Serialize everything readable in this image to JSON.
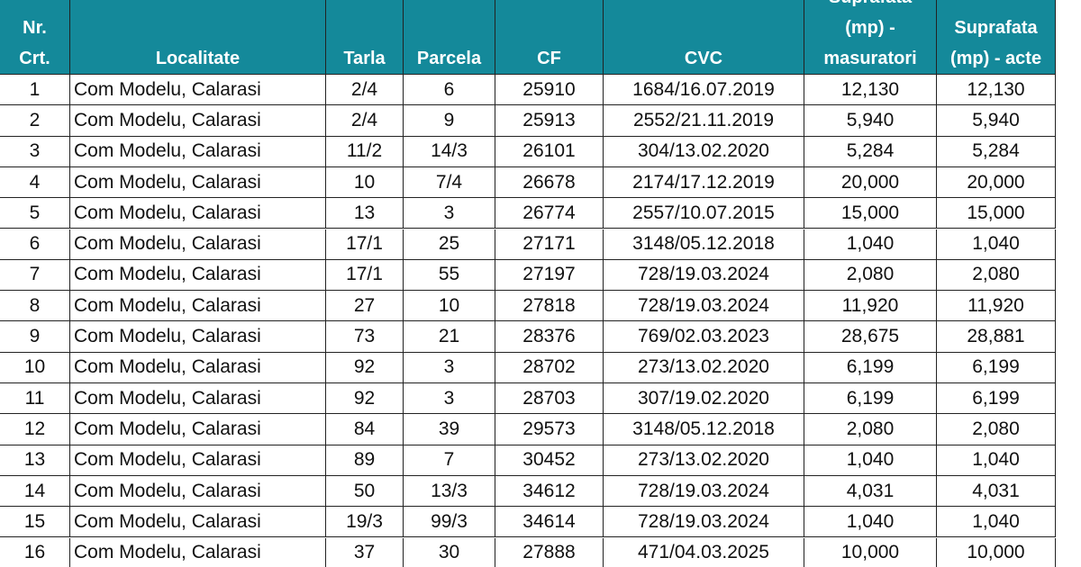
{
  "table": {
    "headers": [
      "Nr.\nCrt.",
      "Localitate",
      "Tarla",
      "Parcela",
      "CF",
      "CVC",
      "Suprafata\n(mp) -\nmasuratori",
      "Suprafata\n(mp) - acte"
    ],
    "rows": [
      [
        "1",
        "Com Modelu, Calarasi",
        "2/4",
        "6",
        "25910",
        "1684/16.07.2019",
        "12,130",
        "12,130"
      ],
      [
        "2",
        "Com Modelu, Calarasi",
        "2/4",
        "9",
        "25913",
        "2552/21.11.2019",
        "5,940",
        "5,940"
      ],
      [
        "3",
        "Com Modelu, Calarasi",
        "11/2",
        "14/3",
        "26101",
        "304/13.02.2020",
        "5,284",
        "5,284"
      ],
      [
        "4",
        "Com Modelu, Calarasi",
        "10",
        "7/4",
        "26678",
        "2174/17.12.2019",
        "20,000",
        "20,000"
      ],
      [
        "5",
        "Com Modelu, Calarasi",
        "13",
        "3",
        "26774",
        "2557/10.07.2015",
        "15,000",
        "15,000"
      ],
      [
        "6",
        "Com Modelu, Calarasi",
        "17/1",
        "25",
        "27171",
        "3148/05.12.2018",
        "1,040",
        "1,040"
      ],
      [
        "7",
        "Com Modelu, Calarasi",
        "17/1",
        "55",
        "27197",
        "728/19.03.2024",
        "2,080",
        "2,080"
      ],
      [
        "8",
        "Com Modelu, Calarasi",
        "27",
        "10",
        "27818",
        "728/19.03.2024",
        "11,920",
        "11,920"
      ],
      [
        "9",
        "Com Modelu, Calarasi",
        "73",
        "21",
        "28376",
        "769/02.03.2023",
        "28,675",
        "28,881"
      ],
      [
        "10",
        "Com Modelu, Calarasi",
        "92",
        "3",
        "28702",
        "273/13.02.2020",
        "6,199",
        "6,199"
      ],
      [
        "11",
        "Com Modelu, Calarasi",
        "92",
        "3",
        "28703",
        "307/19.02.2020",
        "6,199",
        "6,199"
      ],
      [
        "12",
        "Com Modelu, Calarasi",
        "84",
        "39",
        "29573",
        "3148/05.12.2018",
        "2,080",
        "2,080"
      ],
      [
        "13",
        "Com Modelu, Calarasi",
        "89",
        "7",
        "30452",
        "273/13.02.2020",
        "1,040",
        "1,040"
      ],
      [
        "14",
        "Com Modelu, Calarasi",
        "50",
        "13/3",
        "34612",
        "728/19.03.2024",
        "4,031",
        "4,031"
      ],
      [
        "15",
        "Com Modelu, Calarasi",
        "19/3",
        "99/3",
        "34614",
        "728/19.03.2024",
        "1,040",
        "1,040"
      ],
      [
        "16",
        "Com Modelu, Calarasi",
        "37",
        "30",
        "27888",
        "471/04.03.2025",
        "10,000",
        "10,000"
      ]
    ]
  }
}
